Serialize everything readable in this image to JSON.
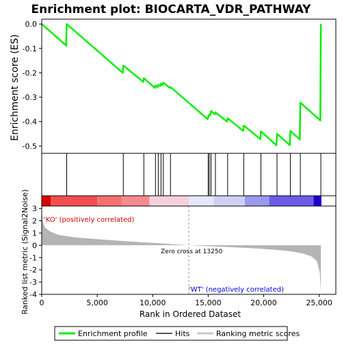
{
  "chart_data": {
    "type": "line",
    "title": "Enrichment plot: BIOCARTA_VDR_PATHWAY",
    "es_panel": {
      "ylabel": "Enrichment score (ES)",
      "ylim": [
        -0.53,
        0.02
      ],
      "yticks": [
        0.0,
        -0.1,
        -0.2,
        -0.3,
        -0.4,
        -0.5
      ],
      "ytick_labels": [
        "0.0",
        "-0.1",
        "-0.2",
        "-0.3",
        "-0.4",
        "-0.5"
      ],
      "series_name": "Enrichment profile",
      "color": "#00ee00",
      "points": [
        [
          0,
          0.0
        ],
        [
          2200,
          -0.088
        ],
        [
          2250,
          0.0
        ],
        [
          7300,
          -0.2
        ],
        [
          7350,
          -0.17
        ],
        [
          9150,
          -0.237
        ],
        [
          9200,
          -0.222
        ],
        [
          10200,
          -0.262
        ],
        [
          10250,
          -0.252
        ],
        [
          10450,
          -0.259
        ],
        [
          10500,
          -0.249
        ],
        [
          10700,
          -0.254
        ],
        [
          10750,
          -0.244
        ],
        [
          10900,
          -0.25
        ],
        [
          10950,
          -0.24
        ],
        [
          11550,
          -0.262
        ],
        [
          11600,
          -0.258
        ],
        [
          14950,
          -0.39
        ],
        [
          15000,
          -0.378
        ],
        [
          15050,
          -0.38
        ],
        [
          15100,
          -0.37
        ],
        [
          15200,
          -0.373
        ],
        [
          15250,
          -0.356
        ],
        [
          15600,
          -0.37
        ],
        [
          15650,
          -0.362
        ],
        [
          16700,
          -0.4
        ],
        [
          16750,
          -0.386
        ],
        [
          18150,
          -0.438
        ],
        [
          18200,
          -0.416
        ],
        [
          19700,
          -0.472
        ],
        [
          19750,
          -0.44
        ],
        [
          21150,
          -0.497
        ],
        [
          21200,
          -0.45
        ],
        [
          22350,
          -0.497
        ],
        [
          22400,
          -0.438
        ],
        [
          23250,
          -0.473
        ],
        [
          23300,
          -0.322
        ],
        [
          25100,
          -0.395
        ],
        [
          25150,
          0.0
        ]
      ]
    },
    "hits": [
      2250,
      7350,
      9200,
      10250,
      10500,
      10750,
      10950,
      11600,
      15000,
      15100,
      15250,
      15650,
      16750,
      18200,
      19750,
      21200,
      22400,
      23300,
      25150
    ],
    "rank_panel": {
      "ylabel": "Ranked list metric (Signal2Noise)",
      "ylim": [
        -4,
        3.2
      ],
      "yticks": [
        3,
        2,
        1,
        0,
        -1,
        -2,
        -3,
        -4
      ],
      "ytick_labels": [
        "3",
        "2",
        "1",
        "0",
        "-1",
        "-2",
        "-3",
        "-4"
      ],
      "zero_cross_label": "Zero cross at 13250",
      "zero_cross": 13250,
      "positive_label": "'KO' (positively correlated)",
      "negative_label": "'WT' (negatively correlated)",
      "profile": [
        [
          0,
          2.9
        ],
        [
          100,
          1.9
        ],
        [
          300,
          1.45
        ],
        [
          700,
          1.15
        ],
        [
          1500,
          0.85
        ],
        [
          3000,
          0.65
        ],
        [
          5000,
          0.5
        ],
        [
          7000,
          0.37
        ],
        [
          9000,
          0.25
        ],
        [
          11000,
          0.14
        ],
        [
          13250,
          0.0
        ],
        [
          15000,
          -0.07
        ],
        [
          17000,
          -0.15
        ],
        [
          19000,
          -0.24
        ],
        [
          21000,
          -0.36
        ],
        [
          22500,
          -0.5
        ],
        [
          23500,
          -0.66
        ],
        [
          24300,
          -0.9
        ],
        [
          24800,
          -1.3
        ],
        [
          25050,
          -2.2
        ],
        [
          25150,
          -3.8
        ]
      ]
    },
    "x_axis": {
      "xlabel": "Rank in Ordered Dataset",
      "xlim": [
        0,
        26500
      ],
      "xticks": [
        0,
        5000,
        10000,
        15000,
        20000,
        25000
      ],
      "xtick_labels": [
        "0",
        "5,000",
        "10,000",
        "15,000",
        "20,000",
        "25,000"
      ]
    },
    "legend": {
      "placement": "bottom",
      "items": [
        {
          "label": "Enrichment profile",
          "color": "#00ee00"
        },
        {
          "label": "Hits",
          "color": "#555555"
        },
        {
          "label": "Ranking metric scores",
          "color": "#c8c8c8"
        }
      ]
    }
  }
}
